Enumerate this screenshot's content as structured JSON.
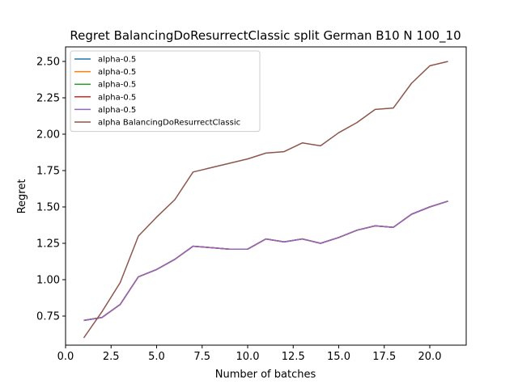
{
  "chart_data": {
    "type": "line",
    "title": "Regret BalancingDoResurrectClassic split German B10 N 100_10",
    "xlabel": "Number of batches",
    "ylabel": "Regret",
    "xlim": [
      0.0,
      22.0
    ],
    "ylim": [
      0.55,
      2.6
    ],
    "xticks": [
      "0.0",
      "2.5",
      "5.0",
      "7.5",
      "10.0",
      "12.5",
      "15.0",
      "17.5",
      "20.0"
    ],
    "xtick_values": [
      0,
      2.5,
      5,
      7.5,
      10,
      12.5,
      15,
      17.5,
      20
    ],
    "yticks": [
      "0.75",
      "1.00",
      "1.25",
      "1.50",
      "1.75",
      "2.00",
      "2.25",
      "2.50"
    ],
    "ytick_values": [
      0.75,
      1.0,
      1.25,
      1.5,
      1.75,
      2.0,
      2.25,
      2.5
    ],
    "grid": false,
    "legend_position": "top-left",
    "x": [
      1,
      2,
      3,
      4,
      5,
      6,
      7,
      8,
      9,
      10,
      11,
      12,
      13,
      14,
      15,
      16,
      17,
      18,
      19,
      20,
      21
    ],
    "series": [
      {
        "name": "alpha-0.5",
        "color": "#1f77b4",
        "values": [
          0.72,
          0.74,
          0.83,
          1.02,
          1.07,
          1.14,
          1.23,
          1.22,
          1.21,
          1.21,
          1.28,
          1.26,
          1.28,
          1.25,
          1.29,
          1.34,
          1.37,
          1.36,
          1.45,
          1.5,
          1.54
        ]
      },
      {
        "name": "alpha-0.5",
        "color": "#ff7f0e",
        "values": [
          0.72,
          0.74,
          0.83,
          1.02,
          1.07,
          1.14,
          1.23,
          1.22,
          1.21,
          1.21,
          1.28,
          1.26,
          1.28,
          1.25,
          1.29,
          1.34,
          1.37,
          1.36,
          1.45,
          1.5,
          1.54
        ]
      },
      {
        "name": "alpha-0.5",
        "color": "#2ca02c",
        "values": [
          0.72,
          0.74,
          0.83,
          1.02,
          1.07,
          1.14,
          1.23,
          1.22,
          1.21,
          1.21,
          1.28,
          1.26,
          1.28,
          1.25,
          1.29,
          1.34,
          1.37,
          1.36,
          1.45,
          1.5,
          1.54
        ]
      },
      {
        "name": "alpha-0.5",
        "color": "#d62728",
        "values": [
          0.72,
          0.74,
          0.83,
          1.02,
          1.07,
          1.14,
          1.23,
          1.22,
          1.21,
          1.21,
          1.28,
          1.26,
          1.28,
          1.25,
          1.29,
          1.34,
          1.37,
          1.36,
          1.45,
          1.5,
          1.54
        ]
      },
      {
        "name": "alpha-0.5",
        "color": "#9467bd",
        "values": [
          0.72,
          0.74,
          0.83,
          1.02,
          1.07,
          1.14,
          1.23,
          1.22,
          1.21,
          1.21,
          1.28,
          1.26,
          1.28,
          1.25,
          1.29,
          1.34,
          1.37,
          1.36,
          1.45,
          1.5,
          1.54
        ]
      },
      {
        "name": "alpha BalancingDoResurrectClassic",
        "color": "#8c564b",
        "values": [
          0.6,
          0.78,
          0.98,
          1.3,
          1.43,
          1.55,
          1.74,
          1.77,
          1.8,
          1.83,
          1.87,
          1.88,
          1.94,
          1.92,
          2.01,
          2.08,
          2.17,
          2.18,
          2.35,
          2.47,
          2.5
        ]
      }
    ]
  }
}
